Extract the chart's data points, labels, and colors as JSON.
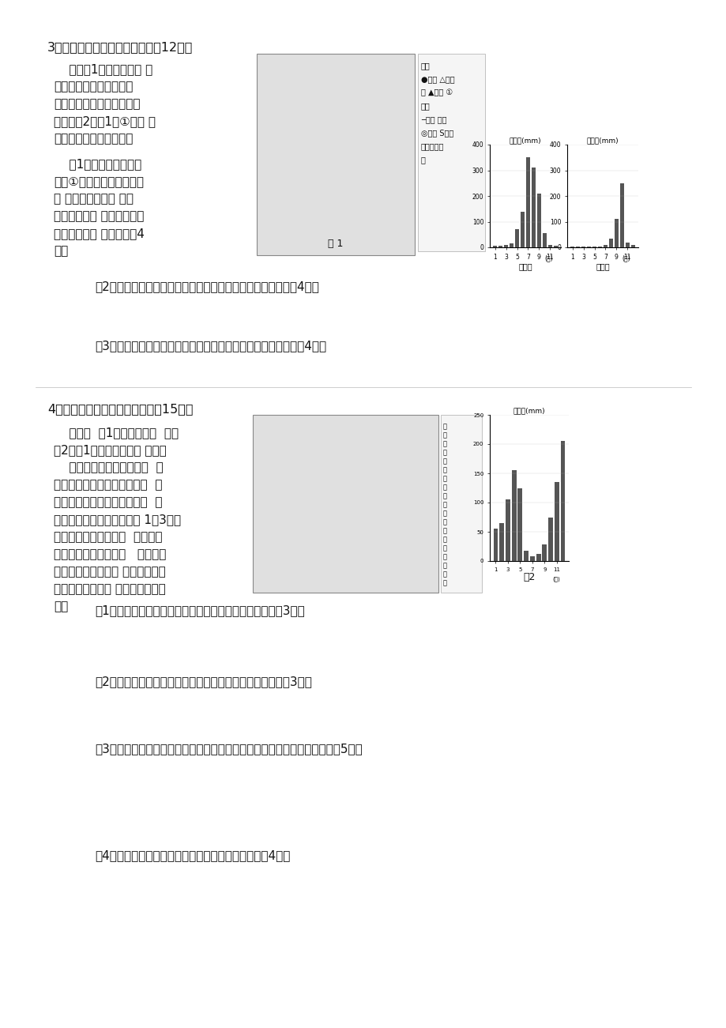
{
  "background_color": "#ffffff",
  "page_width": 9.2,
  "page_height": 13.01,
  "dpi": 100,
  "bamako_data": [
    5,
    5,
    8,
    15,
    70,
    140,
    350,
    310,
    210,
    55,
    8,
    5
  ],
  "dakar_data": [
    3,
    2,
    2,
    2,
    2,
    3,
    8,
    35,
    110,
    250,
    18,
    8
  ],
  "tz_rain": [
    55,
    65,
    105,
    155,
    125,
    18,
    8,
    12,
    28,
    75,
    135,
    205
  ],
  "q3_title": "3．阅读材料，完成下列问题。（12分）",
  "q3_mat_lines": [
    "    材料图1为非洲部分区 域",
    "略图，该区域矿产资源丰",
    "富，大部分矿产品通过海运",
    "出口。图2为图1中①河附 近",
    "两测站年内降水分配图。"
  ],
  "q3_sub1_lines": [
    "    （1）从支流流量变化",
    "看，①河丁城以上河段支流",
    "多 河，以下河段支 流多",
    "河。从河流补 给角度，说明",
    "形成这一现象 的原因。（4",
    "分）"
  ],
  "q3_legend_items": [
    "图例",
    "●城市 △铝土",
    "矿 ▲铁矿 ①",
    "金矿",
    "─铁路 沙漠",
    "◎水域 S露年",
    "河，一时令",
    "河"
  ],
  "q3_sub2": "（2）图中甲、乙、丙三地土壤厚度逐渐增加，简析其成因。（4分）",
  "q3_sub3": "（3）指出图示区域矿产品运至港口的运输方式，并说明理由。（4分）",
  "q4_title": "4．阅读材料，完成下列问题。（15分）",
  "q4_mat_lines": [
    "    材料一  图1为坦桑尼亚略  图。",
    "图2为图1中乙地降水量统 计图。",
    "    材料二坦桑尼亚矿产资源  丰",
    "富，境内大部分地区为高原，  东",
    "部沿海地区有狭窄平原。自然  保",
    "护区众多，约占国土面积的 1／3，该",
    "国经济欠发达，交通、  电力等基",
    "础设施相对落后。近年   来，坦桑",
    "尼亚实施经济改革东 部沿海地区吸",
    "引了大量外资，经 济获得了较快发",
    "展。"
  ],
  "q4_leg_items": [
    "城",
    "镇",
    "铁",
    "路",
    "河",
    "流",
    "经",
    "济",
    "规",
    "划",
    "矿",
    "天",
    "峡",
    "谷",
    "白",
    "色",
    "陆",
    "坡",
    "提",
    "经",
    "即",
    "例"
  ],
  "q4_sub1": "（1）甲地处于内流区，简述该内流区形成的自然条件。（3分）",
  "q4_sub2": "（2）该国东部地区河流不宜发展航运，说明其自然原因。（3分）",
  "q4_sub3": "（3）与开发水电相比，有人认为该国更宜利用天然气发电，请说明理由。（5分）",
  "q4_sub4": "（4）简述该国规划建设图中经济走廊的主要目的。（4分）"
}
